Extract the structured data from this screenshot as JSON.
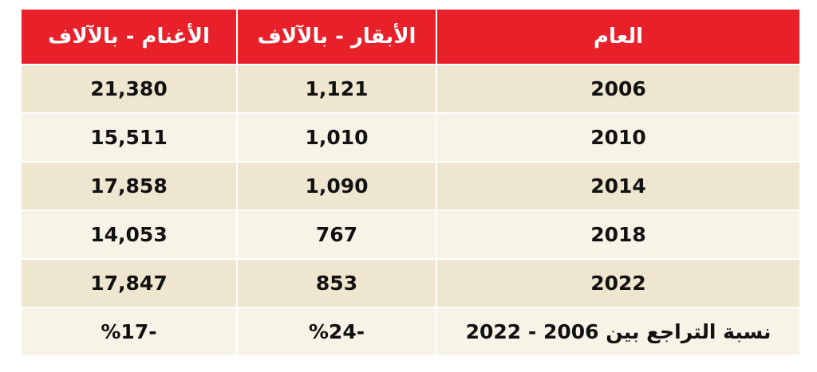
{
  "table": {
    "header": [
      "العام",
      "الأبقار - بالآلاف",
      "الأغنام - بالآلاف"
    ],
    "rows": [
      [
        "2006",
        "1,121",
        "21,380"
      ],
      [
        "2010",
        "1,010",
        "15,511"
      ],
      [
        "2014",
        "1,090",
        "17,858"
      ],
      [
        "2018",
        "767",
        "14,053"
      ],
      [
        "2022",
        "853",
        "17,847"
      ],
      [
        "نسبة التراجع بين 2006 - 2022",
        "-%24",
        "-%17"
      ]
    ]
  }
}
